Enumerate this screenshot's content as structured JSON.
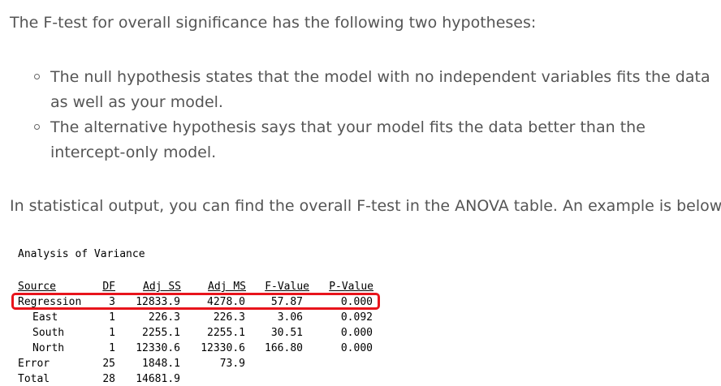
{
  "intro": "The F-test for overall significance has the following two hypotheses:",
  "hypotheses": [
    "The null hypothesis states that the model with no independent variables fits the data as well as your model.",
    "The alternative hypothesis says that your model fits the data better than the intercept-only model."
  ],
  "output_text": "In statistical output, you can find the overall F-test in the ANOVA table. An example is below.",
  "anova": {
    "title": "Analysis of Variance",
    "headers": [
      "Source",
      "DF",
      "Adj SS",
      "Adj MS",
      "F-Value",
      "P-Value"
    ],
    "rows": [
      [
        "Regression",
        "3",
        "12833.9",
        "4278.0",
        "57.87",
        "0.000"
      ],
      [
        "East",
        "1",
        "226.3",
        "226.3",
        "3.06",
        "0.092"
      ],
      [
        "South",
        "1",
        "2255.1",
        "2255.1",
        "30.51",
        "0.000"
      ],
      [
        "North",
        "1",
        "12330.6",
        "12330.6",
        "166.80",
        "0.000"
      ],
      [
        "Error",
        "25",
        "1848.1",
        "73.9",
        "",
        ""
      ],
      [
        "Total",
        "28",
        "14681.9",
        "",
        "",
        ""
      ]
    ],
    "highlight_color": "#e8141b"
  }
}
